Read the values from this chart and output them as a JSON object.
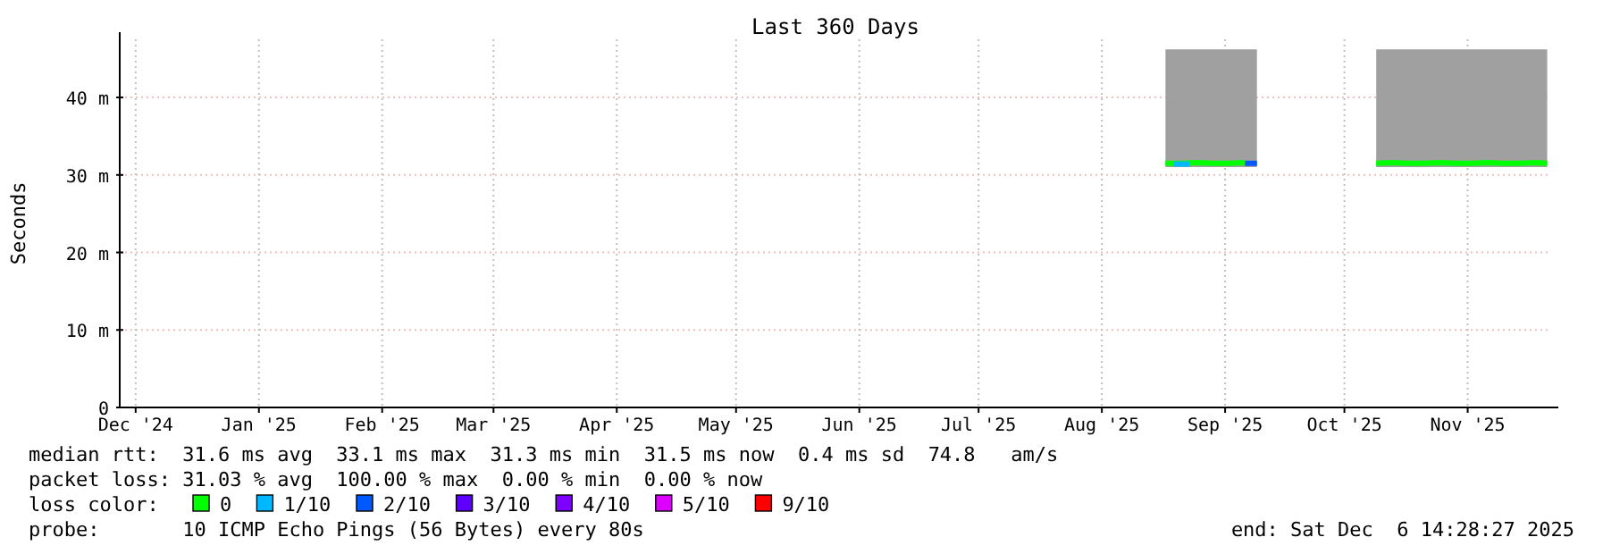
{
  "chart_data": {
    "type": "line",
    "title": "Last 360 Days",
    "ylabel": "Seconds",
    "xlim": [
      "2024-12-11",
      "2025-12-06"
    ],
    "xticks": [
      {
        "value": "2024-12-15",
        "label": "Dec '24"
      },
      {
        "value": "2025-01-15",
        "label": "Jan '25"
      },
      {
        "value": "2025-02-15",
        "label": "Feb '25"
      },
      {
        "value": "2025-03-15",
        "label": "Mar '25"
      },
      {
        "value": "2025-04-15",
        "label": "Apr '25"
      },
      {
        "value": "2025-05-15",
        "label": "May '25"
      },
      {
        "value": "2025-06-15",
        "label": "Jun '25"
      },
      {
        "value": "2025-07-15",
        "label": "Jul '25"
      },
      {
        "value": "2025-08-15",
        "label": "Aug '25"
      },
      {
        "value": "2025-09-15",
        "label": "Sep '25"
      },
      {
        "value": "2025-10-15",
        "label": "Oct '25"
      },
      {
        "value": "2025-11-15",
        "label": "Nov '25"
      }
    ],
    "ylim": [
      0,
      47.5
    ],
    "yticks": [
      0,
      {
        "value": 10,
        "label": "10 m"
      },
      {
        "value": 20,
        "label": "20 m"
      },
      {
        "value": 30,
        "label": "30 m"
      },
      {
        "value": 40,
        "label": "40 m"
      }
    ],
    "grid": true,
    "line_style": "solid",
    "marker": "none",
    "legend": "bottom",
    "legend_title": "loss color:",
    "series": [
      {
        "name": "0",
        "color": "#00ff00",
        "x": [
          "2025-08-31",
          "2025-09-04",
          "2025-09-08",
          "2025-09-12",
          "2025-09-16",
          "2025-09-20",
          "2025-09-23",
          "2025-10-08",
          "2025-10-23",
          "2025-10-27",
          "2025-10-31",
          "2025-11-04",
          "2025-11-08",
          "2025-11-12",
          "2025-11-16",
          "2025-11-20",
          "2025-11-24",
          "2025-11-28",
          "2025-12-02",
          "2025-12-05"
        ],
        "values": [
          31.5,
          31.5,
          31.6,
          31.5,
          31.5,
          31.6,
          null,
          null,
          31.5,
          31.6,
          31.5,
          31.5,
          31.6,
          31.5,
          31.5,
          31.6,
          31.5,
          31.5,
          31.6,
          31.5
        ],
        "lower": [
          31,
          31,
          31,
          31,
          31,
          31,
          31,
          null,
          31,
          31,
          31,
          31,
          31,
          31,
          31,
          31,
          31,
          31,
          31,
          31
        ],
        "upper": [
          46.2,
          46.2,
          46.2,
          46.2,
          46.2,
          46.2,
          46.2,
          null,
          46.2,
          46.2,
          46.2,
          46.2,
          46.2,
          46.2,
          46.2,
          46.2,
          46.2,
          46.2,
          46.2,
          46.2
        ]
      },
      {
        "name": "1/10",
        "color": "#00b8ff",
        "x": [
          "2025-09-02",
          "2025-09-06"
        ],
        "values": [
          31.4,
          31.4
        ]
      },
      {
        "name": "2/10",
        "color": "#0059ff",
        "x": [
          "2025-09-20",
          "2025-09-23"
        ],
        "values": [
          31.5,
          31.5
        ]
      },
      {
        "name": "3/10",
        "color": "#5e00ff"
      },
      {
        "name": "4/10",
        "color": "#7e00ff"
      },
      {
        "name": "5/10",
        "color": "#dd00ff"
      },
      {
        "name": "9/10",
        "color": "#ff0000"
      }
    ],
    "annotations": [
      "median rtt:  31.6 ms avg  33.1 ms max  31.3 ms min  31.5 ms now  0.4 ms sd  74.8   am/s",
      "packet loss: 31.03 % avg  100.00 % max  0.00 % min  0.00 % now",
      "probe:       10 ICMP Echo Pings (56 Bytes) every 80s",
      "end: Sat Dec  6 14:28:27 2025"
    ]
  }
}
